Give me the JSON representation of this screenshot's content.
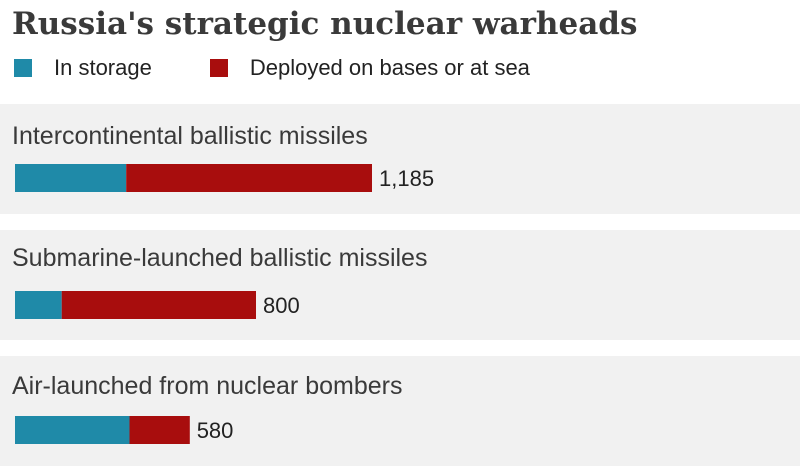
{
  "chart_data": {
    "type": "bar",
    "orientation": "horizontal",
    "stacked": true,
    "title": "Russia's strategic nuclear warheads",
    "legend": {
      "placement": "top-left",
      "entries": [
        {
          "name": "In storage",
          "color": "#1f8aa8"
        },
        {
          "name": "Deployed on bases or at sea",
          "color": "#a80d0d"
        }
      ]
    },
    "categories": [
      "Intercontinental ballistic missiles",
      "Submarine-launched ballistic missiles",
      "Air-launched from nuclear bombers"
    ],
    "series": [
      {
        "name": "In storage",
        "color": "#1f8aa8",
        "values": [
          369,
          155,
          380
        ]
      },
      {
        "name": "Deployed on bases or at sea",
        "color": "#a80d0d",
        "values": [
          816,
          645,
          200
        ]
      }
    ],
    "totals": [
      1185,
      800,
      580
    ],
    "total_labels": [
      "1,185",
      "800",
      "580"
    ],
    "xlim": [
      0,
      1185
    ],
    "grid": false
  }
}
